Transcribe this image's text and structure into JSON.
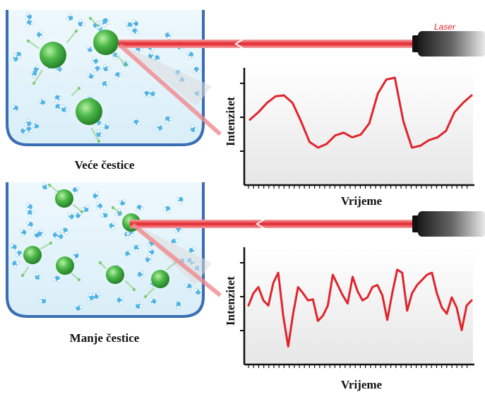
{
  "labels": {
    "laser": "Laser",
    "large_caption": "Veće čestice",
    "small_caption": "Manje čestice",
    "y_axis": "Intenzitet",
    "x_axis": "Vrijeme"
  },
  "colors": {
    "laser_beam": "#e0242c",
    "signal_line": "#e0242c",
    "particle": "#3aa83a",
    "container_border": "#3b6db4",
    "liquid": "#e6f4fb",
    "molecule": "#4fb3e6"
  },
  "chart_data": [
    {
      "type": "line",
      "panel": "large-particles",
      "xlabel": "Vrijeme",
      "ylabel": "Intenzitet",
      "grid": false,
      "y": [
        0.52,
        0.6,
        0.7,
        0.77,
        0.78,
        0.7,
        0.5,
        0.28,
        0.22,
        0.26,
        0.35,
        0.38,
        0.33,
        0.36,
        0.48,
        0.8,
        0.95,
        0.97,
        0.5,
        0.22,
        0.24,
        0.3,
        0.33,
        0.4,
        0.6,
        0.7,
        0.78
      ]
    },
    {
      "type": "line",
      "panel": "small-particles",
      "xlabel": "Vrijeme",
      "ylabel": "Intenzitet",
      "grid": false,
      "y": [
        0.5,
        0.62,
        0.68,
        0.55,
        0.5,
        0.72,
        0.82,
        0.4,
        0.1,
        0.42,
        0.68,
        0.62,
        0.55,
        0.56,
        0.35,
        0.4,
        0.5,
        0.8,
        0.7,
        0.6,
        0.52,
        0.78,
        0.64,
        0.55,
        0.58,
        0.68,
        0.7,
        0.6,
        0.36,
        0.62,
        0.85,
        0.82,
        0.45,
        0.62,
        0.7,
        0.75,
        0.8,
        0.82,
        0.62,
        0.48,
        0.42,
        0.58,
        0.48,
        0.26,
        0.5,
        0.55
      ]
    }
  ]
}
